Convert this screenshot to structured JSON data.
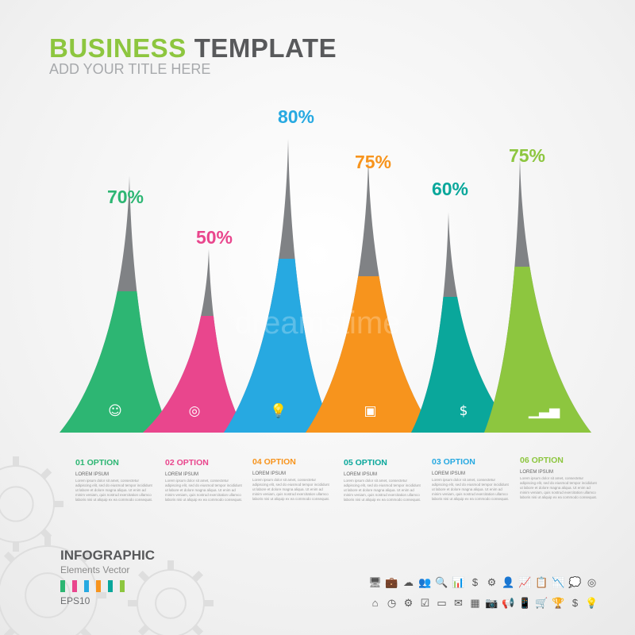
{
  "header": {
    "title_a": "BUSINESS",
    "title_b": "TEMPLATE",
    "subtitle": "ADD YOUR  TITLE HERE"
  },
  "watermark": "dreamstime",
  "peaks": [
    {
      "percent": 70,
      "label": "70%",
      "color": "#2db673",
      "icon": "head-gears-icon",
      "glyph": "☺"
    },
    {
      "percent": 50,
      "label": "50%",
      "color": "#e9468d",
      "icon": "target-icon",
      "glyph": "◎"
    },
    {
      "percent": 80,
      "label": "80%",
      "color": "#27a9e1",
      "icon": "lightbulb-icon",
      "glyph": "💡"
    },
    {
      "percent": 75,
      "label": "75%",
      "color": "#f7941d",
      "icon": "presentation-board-icon",
      "glyph": "▣"
    },
    {
      "percent": 60,
      "label": "60%",
      "color": "#0aa79b",
      "icon": "money-bag-icon",
      "glyph": "$"
    },
    {
      "percent": 75,
      "label": "75%",
      "color": "#8dc63f",
      "icon": "growth-chart-icon",
      "glyph": "▁▃▅"
    }
  ],
  "options": [
    {
      "title": "01  OPTION",
      "color": "#2db673",
      "heading": "LOREM IPSUM",
      "body": "Lorem ipsum dolor sit amet, consectetur adipiscing elit, sed do eiusmod tempor incididunt ut labore et dolore magna aliqua. Ut enim ad minim veniam, quis nostrud exercitation ullamco laboris nisi ut aliquip ex ea commodo consequat."
    },
    {
      "title": "02  OPTION",
      "color": "#e9468d",
      "heading": "LOREM IPSUM",
      "body": "Lorem ipsum dolor sit amet, consectetur adipiscing elit, sed do eiusmod tempor incididunt ut labore et dolore magna aliqua. Ut enim ad minim veniam, quis nostrud exercitation ullamco laboris nisi ut aliquip ex ea commodo consequat."
    },
    {
      "title": "04  OPTION",
      "color": "#f7941d",
      "heading": "LOREM IPSUM",
      "body": "Lorem ipsum dolor sit amet, consectetur adipiscing elit, sed do eiusmod tempor incididunt ut labore et dolore magna aliqua. Ut enim ad minim veniam, quis nostrud exercitation ullamco laboris nisi ut aliquip ex ea commodo consequat."
    },
    {
      "title": "05  OPTION",
      "color": "#0aa79b",
      "heading": "LOREM IPSUM",
      "body": "Lorem ipsum dolor sit amet, consectetur adipiscing elit, sed do eiusmod tempor incididunt ut labore et dolore magna aliqua. Ut enim ad minim veniam, quis nostrud exercitation ullamco laboris nisi ut aliquip ex ea commodo consequat."
    },
    {
      "title": "03  OPTION",
      "color": "#27a9e1",
      "heading": "LOREM IPSUM",
      "body": "Lorem ipsum dolor sit amet, consectetur adipiscing elit, sed do eiusmod tempor incididunt ut labore et dolore magna aliqua. Ut enim ad minim veniam, quis nostrud exercitation ullamco laboris nisi ut aliquip ex ea commodo consequat."
    },
    {
      "title": "06  OPTION",
      "color": "#8dc63f",
      "heading": "LOREM IPSUM",
      "body": "Lorem ipsum dolor sit amet, consectetur adipiscing elit, sed do eiusmod tempor incididunt ut labore et dolore magna aliqua. Ut enim ad minim veniam, quis nostrud exercitation ullamco laboris nisi ut aliquip ex ea commodo consequat."
    }
  ],
  "footer": {
    "title": "INFOGRAPHIC",
    "subtitle": "Elements  Vector",
    "format": "EPS10",
    "swatches": [
      "#2db673",
      "#e9468d",
      "#27a9e1",
      "#f7941d",
      "#0aa79b",
      "#8dc63f"
    ]
  },
  "icon_rows": [
    [
      "🖥",
      "💼",
      "☁",
      "👥",
      "🔍",
      "📊",
      "$",
      "⚙",
      "👤",
      "📈",
      "📋",
      "📉",
      "💭",
      "◎"
    ],
    [
      "⌂",
      "◷",
      "⚙",
      "☑",
      "▭",
      "✉",
      "▦",
      "📷",
      "📢",
      "📱",
      "🛒",
      "🏆",
      "$",
      "💡"
    ]
  ]
}
